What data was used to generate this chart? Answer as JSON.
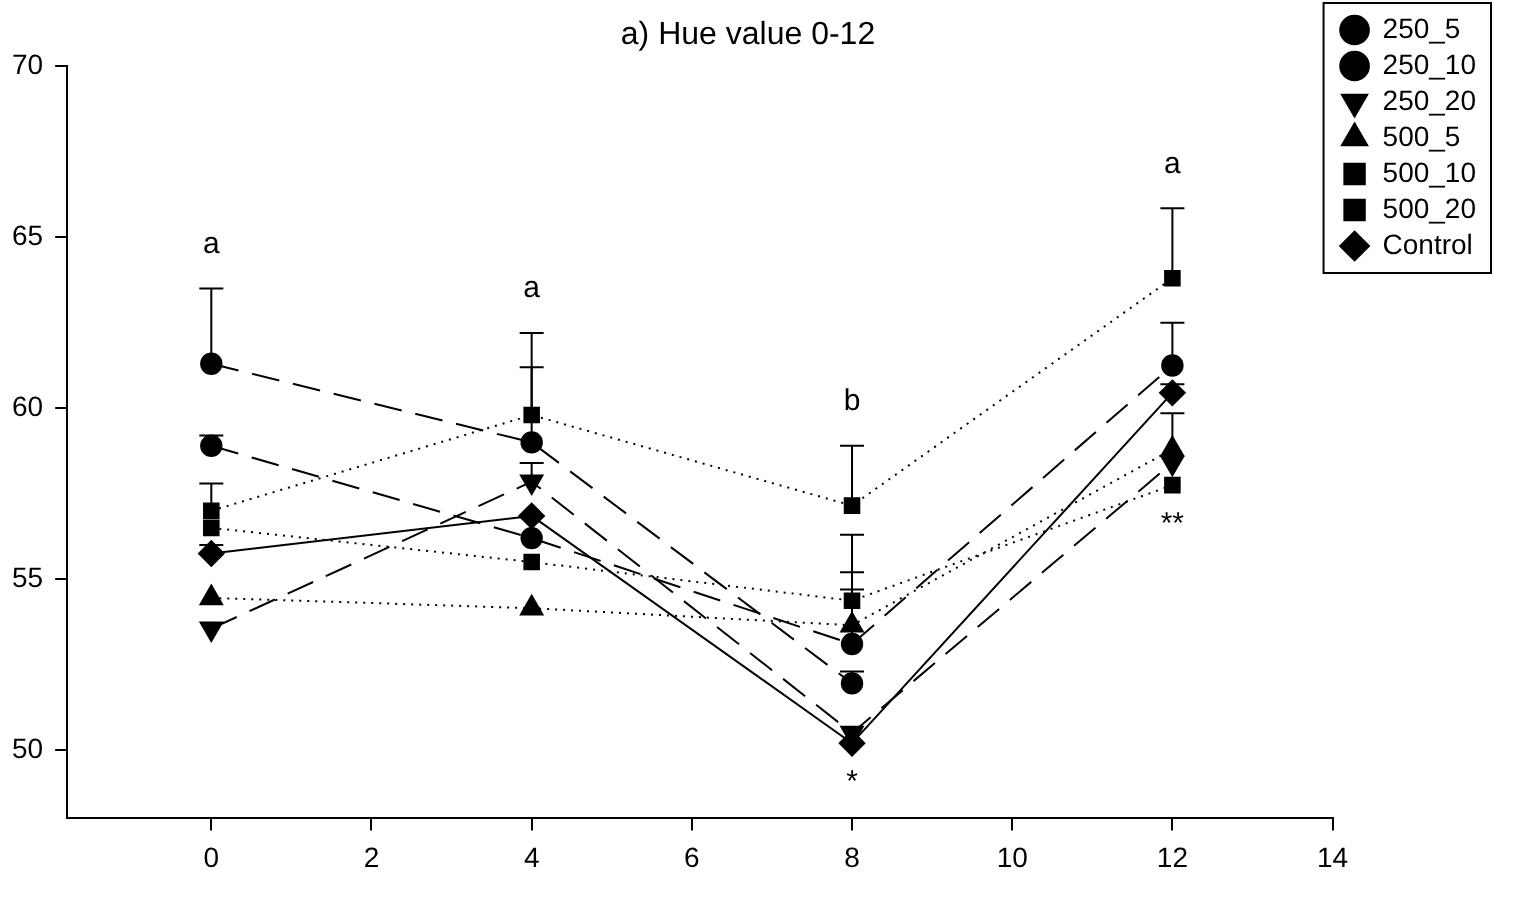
{
  "chart_data": {
    "type": "line",
    "title": "a) Hue value 0-12",
    "x": [
      0,
      4,
      8,
      12
    ],
    "xlim": [
      -1.8,
      14
    ],
    "xticks": [
      0,
      2,
      4,
      6,
      8,
      10,
      12,
      14
    ],
    "ylim": [
      48,
      70
    ],
    "yticks": [
      50,
      55,
      60,
      65,
      70
    ],
    "grid": false,
    "legend": "top right",
    "series": [
      {
        "name": "250_5",
        "color": "#000000",
        "marker": "circle",
        "line_style": "dashed",
        "values": [
          61.3,
          59.0,
          51.95,
          null
        ],
        "errors": [
          [
            61.3,
            63.5
          ],
          [
            59.0,
            61.2
          ],
          [
            51.95,
            52.3
          ],
          null
        ]
      },
      {
        "name": "250_10",
        "color": "#000000",
        "marker": "circle",
        "line_style": "dashed",
        "values": [
          58.9,
          56.2,
          53.1,
          61.25
        ],
        "errors": [
          [
            58.9,
            59.2
          ],
          null,
          [
            53.1,
            56.3
          ],
          [
            61.25,
            62.5
          ]
        ]
      },
      {
        "name": "250_20",
        "color": "#000000",
        "marker": "triangle-down",
        "line_style": "dashed",
        "values": [
          53.55,
          57.85,
          50.5,
          58.4
        ],
        "errors": [
          null,
          [
            57.85,
            58.4
          ],
          null,
          null
        ]
      },
      {
        "name": "500_5",
        "color": "#000000",
        "marker": "triangle",
        "line_style": "dotted",
        "values": [
          54.45,
          54.15,
          53.65,
          58.8
        ],
        "errors": [
          null,
          null,
          [
            53.65,
            54.7
          ],
          [
            58.8,
            59.85
          ]
        ]
      },
      {
        "name": "500_10",
        "color": "#000000",
        "marker": "square",
        "line_style": "dotted",
        "values": [
          57.0,
          59.8,
          57.15,
          63.8
        ],
        "errors": [
          [
            57.0,
            57.8
          ],
          [
            59.8,
            62.2
          ],
          [
            57.15,
            58.9
          ],
          [
            63.8,
            65.85
          ]
        ]
      },
      {
        "name": "500_20",
        "color": "#000000",
        "marker": "square",
        "line_style": "dotted",
        "values": [
          56.5,
          55.5,
          54.37,
          57.75
        ],
        "errors": [
          null,
          null,
          [
            54.37,
            55.2
          ],
          null
        ]
      },
      {
        "name": "Control",
        "color": "#000000",
        "marker": "diamond",
        "line_style": "solid",
        "values": [
          55.75,
          56.85,
          50.2,
          60.45
        ],
        "errors": [
          [
            55.75,
            56.0
          ],
          null,
          null,
          [
            60.45,
            60.7
          ]
        ]
      }
    ],
    "annotations": [
      {
        "text": "a",
        "x": 0,
        "y": 63.5
      },
      {
        "text": "a",
        "x": 4,
        "y": 62.2
      },
      {
        "text": "b",
        "x": 8,
        "y": 58.9
      },
      {
        "text": "a",
        "x": 12,
        "y": 65.85
      },
      {
        "text": "*",
        "x": 8,
        "y": 50.2
      },
      {
        "text": "**",
        "x": 12,
        "y": 57.75
      }
    ]
  }
}
